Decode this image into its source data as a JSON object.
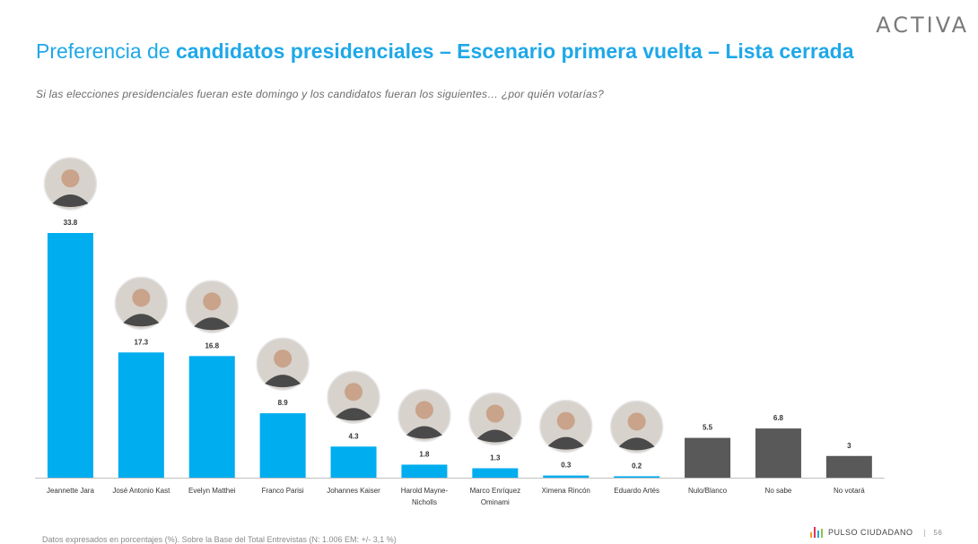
{
  "logo_text": "ACTIVA",
  "title": {
    "regular": "Preferencia de ",
    "bold": "candidatos presidenciales – Escenario primera vuelta – Lista cerrada"
  },
  "subtitle": "Si las elecciones presidenciales fueran este domingo y los candidatos fueran los siguientes… ¿por quién votarías?",
  "footer": {
    "note": "Datos expresados en porcentajes (%). Sobre la Base del Total Entrevistas (N: 1.006  EM: +/- 3,1 %)",
    "brand": "PULSO CIUDADANO",
    "page": "56"
  },
  "colors": {
    "candidate_bar": "#00adef",
    "other_bar": "#595959",
    "title": "#1fa8e8"
  },
  "chart_data": {
    "type": "bar",
    "categories": [
      "Jeannette Jara",
      "José Antonio Kast",
      "Evelyn Matthei",
      "Franco Parisi",
      "Johannes Kaiser",
      "Harold Mayne-Nicholls",
      "Marco Enríquez Ominami",
      "Ximena Rincón",
      "Eduardo Artés",
      "Nulo/Blanco",
      "No sabe",
      "No votará"
    ],
    "category_lines": [
      [
        "Jeannette Jara"
      ],
      [
        "José Antonio Kast"
      ],
      [
        "Evelyn Matthei"
      ],
      [
        "Franco Parisi"
      ],
      [
        "Johannes Kaiser"
      ],
      [
        "Harold  Mayne-",
        "Nicholls"
      ],
      [
        "Marco Enríquez",
        "Ominami"
      ],
      [
        "Ximena Rincón"
      ],
      [
        "Eduardo Artés"
      ],
      [
        "Nulo/Blanco"
      ],
      [
        "No sabe"
      ],
      [
        "No votará"
      ]
    ],
    "values": [
      33.8,
      17.3,
      16.8,
      8.9,
      4.3,
      1.8,
      1.3,
      0.3,
      0.2,
      5.5,
      6.8,
      3
    ],
    "value_labels": [
      "33.8",
      "17.3",
      "16.8",
      "8.9",
      "4.3",
      "1.8",
      "1.3",
      "0.3",
      "0.2",
      "5.5",
      "6.8",
      "3"
    ],
    "bar_kind": [
      "candidate",
      "candidate",
      "candidate",
      "candidate",
      "candidate",
      "candidate",
      "candidate",
      "candidate",
      "candidate",
      "other",
      "other",
      "other"
    ],
    "has_photo": [
      true,
      true,
      true,
      true,
      true,
      true,
      true,
      true,
      true,
      false,
      false,
      false
    ],
    "ylim": [
      0,
      33.8
    ],
    "grid": false,
    "xlabel": "",
    "ylabel": ""
  }
}
